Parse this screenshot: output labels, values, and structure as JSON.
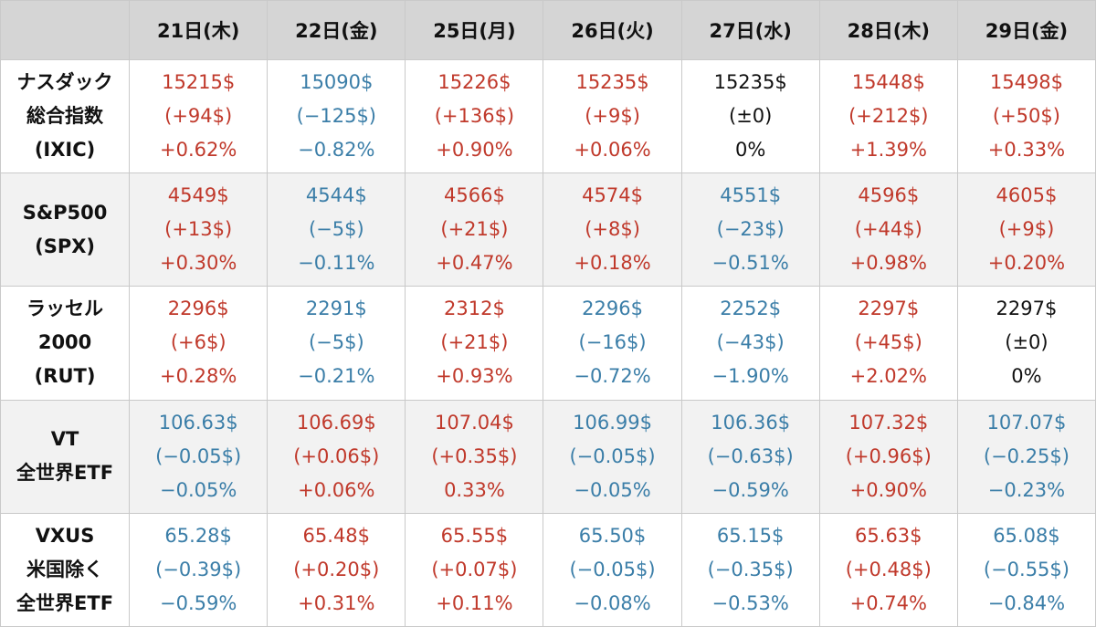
{
  "header": {
    "corner": "",
    "days": [
      "21日(木)",
      "22日(金)",
      "25日(月)",
      "26日(火)",
      "27日(水)",
      "28日(木)",
      "29日(金)"
    ]
  },
  "colors": {
    "up": "#c0392b",
    "down": "#3b7ea8",
    "flat": "#111111",
    "header_bg": "#d5d5d5",
    "stripe_bg": "#f2f2f2"
  },
  "rows": [
    {
      "label": [
        "ナスダック",
        "総合指数",
        "(IXIC)"
      ],
      "cells": [
        {
          "dir": "up",
          "price": "15215$",
          "change": "(+94$)",
          "pct": "+0.62%"
        },
        {
          "dir": "down",
          "price": "15090$",
          "change": "(−125$)",
          "pct": "−0.82%"
        },
        {
          "dir": "up",
          "price": "15226$",
          "change": "(+136$)",
          "pct": "+0.90%"
        },
        {
          "dir": "up",
          "price": "15235$",
          "change": "(+9$)",
          "pct": "+0.06%"
        },
        {
          "dir": "flat",
          "price": "15235$",
          "change": "(±0)",
          "pct": "0%"
        },
        {
          "dir": "up",
          "price": "15448$",
          "change": "(+212$)",
          "pct": "+1.39%"
        },
        {
          "dir": "up",
          "price": "15498$",
          "change": "(+50$)",
          "pct": "+0.33%"
        }
      ]
    },
    {
      "label": [
        "S&P500",
        "(SPX)"
      ],
      "cells": [
        {
          "dir": "up",
          "price": "4549$",
          "change": "(+13$)",
          "pct": "+0.30%"
        },
        {
          "dir": "down",
          "price": "4544$",
          "change": "(−5$)",
          "pct": "−0.11%"
        },
        {
          "dir": "up",
          "price": "4566$",
          "change": "(+21$)",
          "pct": "+0.47%"
        },
        {
          "dir": "up",
          "price": "4574$",
          "change": "(+8$)",
          "pct": "+0.18%"
        },
        {
          "dir": "down",
          "price": "4551$",
          "change": "(−23$)",
          "pct": "−0.51%"
        },
        {
          "dir": "up",
          "price": "4596$",
          "change": "(+44$)",
          "pct": "+0.98%"
        },
        {
          "dir": "up",
          "price": "4605$",
          "change": "(+9$)",
          "pct": "+0.20%"
        }
      ]
    },
    {
      "label": [
        "ラッセル",
        "2000",
        "(RUT)"
      ],
      "cells": [
        {
          "dir": "up",
          "price": "2296$",
          "change": "(+6$)",
          "pct": "+0.28%"
        },
        {
          "dir": "down",
          "price": "2291$",
          "change": "(−5$)",
          "pct": "−0.21%"
        },
        {
          "dir": "up",
          "price": "2312$",
          "change": "(+21$)",
          "pct": "+0.93%"
        },
        {
          "dir": "down",
          "price": "2296$",
          "change": "(−16$)",
          "pct": "−0.72%"
        },
        {
          "dir": "down",
          "price": "2252$",
          "change": "(−43$)",
          "pct": "−1.90%"
        },
        {
          "dir": "up",
          "price": "2297$",
          "change": "(+45$)",
          "pct": "+2.02%"
        },
        {
          "dir": "flat",
          "price": "2297$",
          "change": "(±0)",
          "pct": "0%"
        }
      ]
    },
    {
      "label": [
        "VT",
        "全世界ETF"
      ],
      "cells": [
        {
          "dir": "down",
          "price": "106.63$",
          "change": "(−0.05$)",
          "pct": "−0.05%"
        },
        {
          "dir": "up",
          "price": "106.69$",
          "change": "(+0.06$)",
          "pct": "+0.06%"
        },
        {
          "dir": "up",
          "price": "107.04$",
          "change": "(+0.35$)",
          "pct": "0.33%"
        },
        {
          "dir": "down",
          "price": "106.99$",
          "change": "(−0.05$)",
          "pct": "−0.05%"
        },
        {
          "dir": "down",
          "price": "106.36$",
          "change": "(−0.63$)",
          "pct": "−0.59%"
        },
        {
          "dir": "up",
          "price": "107.32$",
          "change": "(+0.96$)",
          "pct": "+0.90%"
        },
        {
          "dir": "down",
          "price": "107.07$",
          "change": "(−0.25$)",
          "pct": "−0.23%"
        }
      ]
    },
    {
      "label": [
        "VXUS",
        "米国除く",
        "全世界ETF"
      ],
      "cells": [
        {
          "dir": "down",
          "price": "65.28$",
          "change": "(−0.39$)",
          "pct": "−0.59%"
        },
        {
          "dir": "up",
          "price": "65.48$",
          "change": "(+0.20$)",
          "pct": "+0.31%"
        },
        {
          "dir": "up",
          "price": "65.55$",
          "change": "(+0.07$)",
          "pct": "+0.11%"
        },
        {
          "dir": "down",
          "price": "65.50$",
          "change": "(−0.05$)",
          "pct": "−0.08%"
        },
        {
          "dir": "down",
          "price": "65.15$",
          "change": "(−0.35$)",
          "pct": "−0.53%"
        },
        {
          "dir": "up",
          "price": "65.63$",
          "change": "(+0.48$)",
          "pct": "+0.74%"
        },
        {
          "dir": "down",
          "price": "65.08$",
          "change": "(−0.55$)",
          "pct": "−0.84%"
        }
      ]
    }
  ]
}
